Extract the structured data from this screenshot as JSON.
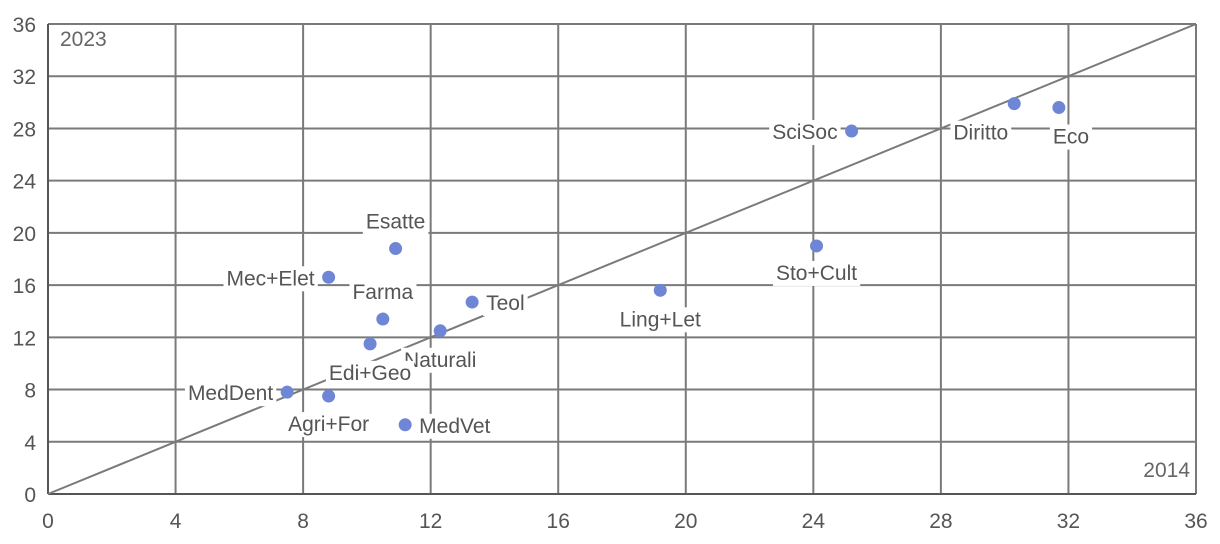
{
  "chart_data": {
    "type": "scatter",
    "corner_labels": {
      "y_axis": "2023",
      "x_axis": "2014"
    },
    "xlim": [
      0,
      36
    ],
    "ylim": [
      0,
      36
    ],
    "x_ticks": [
      0,
      4,
      8,
      12,
      16,
      20,
      24,
      28,
      32,
      36
    ],
    "y_ticks": [
      0,
      4,
      8,
      12,
      16,
      20,
      24,
      28,
      32,
      36
    ],
    "grid": true,
    "reference_line": "y = x",
    "point_color": "#6f86d6",
    "points": [
      {
        "label": "Diritto",
        "x": 30.3,
        "y": 29.9
      },
      {
        "label": "Eco",
        "x": 31.7,
        "y": 29.6
      },
      {
        "label": "SciSoc",
        "x": 25.2,
        "y": 27.8
      },
      {
        "label": "Sto+Cult",
        "x": 24.1,
        "y": 19.0
      },
      {
        "label": "Ling+Let",
        "x": 19.2,
        "y": 15.6
      },
      {
        "label": "Teol",
        "x": 13.3,
        "y": 14.7
      },
      {
        "label": "Esatte",
        "x": 10.9,
        "y": 18.8
      },
      {
        "label": "Mec+Elet",
        "x": 8.8,
        "y": 16.6
      },
      {
        "label": "Farma",
        "x": 10.5,
        "y": 13.4
      },
      {
        "label": "Naturali",
        "x": 12.3,
        "y": 12.5
      },
      {
        "label": "Edi+Geo",
        "x": 10.1,
        "y": 11.5
      },
      {
        "label": "MedDent",
        "x": 7.5,
        "y": 7.8
      },
      {
        "label": "Agri+For",
        "x": 8.8,
        "y": 7.5
      },
      {
        "label": "MedVet",
        "x": 11.2,
        "y": 5.3
      }
    ]
  }
}
